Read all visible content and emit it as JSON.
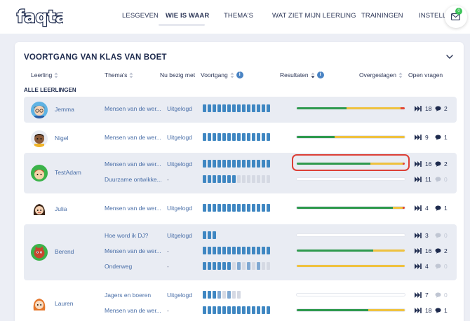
{
  "nav": {
    "logo_text": "faqta",
    "items": [
      "LESGEVEN",
      "WIE IS WAAR",
      "THEMA'S",
      "WAT ZIET MIJN LEERLING",
      "TRAININGEN",
      "INSTELLIN"
    ],
    "active_index": 1,
    "mail_badge": "0"
  },
  "card": {
    "title": "VOORTGANG VAN KLAS VAN BOET",
    "section_label": "ALLE LEERLINGEN"
  },
  "columns": {
    "pupil": "Leerling",
    "themes": "Thema's",
    "busy": "Nu bezig met",
    "progress": "Voortgang",
    "results": "Resultaten",
    "skipped": "Overgeslagen",
    "questions": "Open vragen"
  },
  "colors": {
    "accent": "#3f87c2",
    "result_green": "#2f9a4e",
    "result_yellow": "#efc23f",
    "result_red": "#e24838",
    "highlight": "#dc3f36"
  },
  "pupils": [
    {
      "name": "Jemma",
      "avatar": "avatar-boy-glasses",
      "lines": [
        {
          "theme": "Mensen van de wer...",
          "busy": "Uitgelogd",
          "progress_filled": 14,
          "progress_partial": 0,
          "progress_total": 14,
          "result": [
            0.46,
            0.5,
            0.04
          ],
          "skipped": "18",
          "questions": "2",
          "questions_muted": false
        }
      ]
    },
    {
      "name": "Nigel",
      "avatar": "avatar-boy-dark",
      "lines": [
        {
          "theme": "Mensen van de wer...",
          "busy": "Uitgelogd",
          "progress_filled": 14,
          "progress_partial": 0,
          "progress_total": 14,
          "result": [
            0.35,
            0.65,
            0.0
          ],
          "skipped": "9",
          "questions": "1",
          "questions_muted": false
        }
      ]
    },
    {
      "name": "TestAdam",
      "avatar": "avatar-green-frog",
      "lines": [
        {
          "theme": "Mensen van de wer...",
          "busy": "Uitgelogd",
          "progress_filled": 14,
          "progress_partial": 0,
          "progress_total": 14,
          "result": [
            0.68,
            0.3,
            0.02
          ],
          "skipped": "16",
          "questions": "2",
          "questions_muted": false,
          "highlighted": true
        },
        {
          "theme": "Duurzame ontwikke...",
          "busy": "-",
          "progress_filled": 7,
          "progress_partial": 0,
          "progress_total": 14,
          "result": [
            0.0,
            0.0,
            0.0
          ],
          "skipped": "11",
          "questions": "0",
          "questions_muted": true
        }
      ]
    },
    {
      "name": "Julia",
      "avatar": "avatar-girl-dark-hair",
      "lines": [
        {
          "theme": "Mensen van de wer...",
          "busy": "Uitgelogd",
          "progress_filled": 14,
          "progress_partial": 0,
          "progress_total": 14,
          "result": [
            0.89,
            0.09,
            0.02
          ],
          "skipped": "4",
          "questions": "1",
          "questions_muted": false
        }
      ]
    },
    {
      "name": "Berend",
      "avatar": "avatar-red-creature",
      "lines": [
        {
          "theme": "Hoe word ik DJ?",
          "busy": "Uitgelogd",
          "progress_filled": 3,
          "progress_partial": 0,
          "progress_total": 3,
          "result": [
            0.0,
            0.0,
            0.0
          ],
          "skipped": "3",
          "questions": "0",
          "questions_muted": true
        },
        {
          "theme": "Mensen van de wer...",
          "busy": "-",
          "progress_filled": 14,
          "progress_partial": 0,
          "progress_total": 14,
          "result": [
            0.71,
            0.29,
            0.0
          ],
          "skipped": "16",
          "questions": "2",
          "questions_muted": false
        },
        {
          "theme": "Onderweg",
          "busy": "-",
          "progress_filled": 6,
          "progress_partial": 6,
          "progress_total": 14,
          "result": [
            0.0,
            1.0,
            0.0
          ],
          "skipped": "4",
          "questions": "0",
          "questions_muted": true
        }
      ]
    },
    {
      "name": "Lauren",
      "avatar": "avatar-girl-orange-hair",
      "lines": [
        {
          "theme": "Jagers en boeren",
          "busy": "Uitgelogd",
          "progress_filled": 3,
          "progress_partial": 3,
          "progress_total": 8,
          "result": [
            0.0,
            0.0,
            0.0
          ],
          "skipped": "7",
          "questions": "0",
          "questions_muted": true
        },
        {
          "theme": "Mensen van de wer...",
          "busy": "-",
          "progress_filled": 14,
          "progress_partial": 0,
          "progress_total": 14,
          "result": [
            0.66,
            0.34,
            0.0
          ],
          "skipped": "18",
          "questions": "1",
          "questions_muted": false
        }
      ]
    }
  ]
}
